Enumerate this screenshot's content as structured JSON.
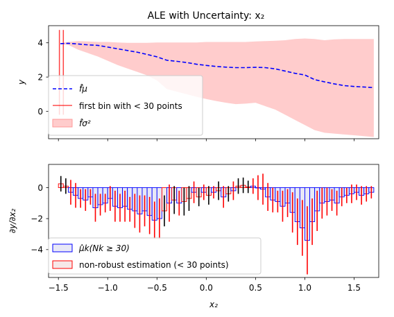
{
  "chart_data": [
    {
      "type": "area",
      "title": "ALE with Uncertainty: x₂",
      "xlabel": "",
      "ylabel": "y",
      "xlim": [
        -1.6,
        1.75
      ],
      "ylim": [
        -1.6,
        5.0
      ],
      "xticks": [
        -1.5,
        -1.0,
        -0.5,
        0.0,
        0.5,
        1.0,
        1.5
      ],
      "yticks": [
        0,
        2,
        4
      ],
      "ytick_labels": [
        "0",
        "2",
        "4"
      ],
      "colors": {
        "mean": "#0000ff",
        "band": "#ff9999",
        "vline": "#ff0000"
      },
      "series": [
        {
          "name": "f̂μ",
          "x": [
            -1.48,
            -1.4,
            -1.3,
            -1.2,
            -1.1,
            -1.0,
            -0.9,
            -0.8,
            -0.7,
            -0.6,
            -0.5,
            -0.4,
            -0.3,
            -0.2,
            -0.1,
            0.0,
            0.1,
            0.2,
            0.3,
            0.4,
            0.5,
            0.6,
            0.7,
            0.8,
            0.9,
            1.0,
            1.1,
            1.2,
            1.3,
            1.4,
            1.5,
            1.6,
            1.7
          ],
          "y": [
            3.95,
            3.97,
            3.93,
            3.88,
            3.85,
            3.75,
            3.65,
            3.55,
            3.45,
            3.32,
            3.18,
            2.98,
            2.92,
            2.85,
            2.75,
            2.68,
            2.62,
            2.58,
            2.55,
            2.55,
            2.57,
            2.55,
            2.48,
            2.35,
            2.22,
            2.12,
            1.85,
            1.72,
            1.6,
            1.5,
            1.45,
            1.42,
            1.38
          ]
        },
        {
          "name": "f̂σ²",
          "x": [
            -1.48,
            -1.4,
            -1.3,
            -1.2,
            -1.1,
            -1.0,
            -0.9,
            -0.8,
            -0.7,
            -0.6,
            -0.5,
            -0.4,
            -0.3,
            -0.2,
            -0.1,
            0.0,
            0.1,
            0.2,
            0.3,
            0.4,
            0.5,
            0.6,
            0.7,
            0.8,
            0.9,
            1.0,
            1.1,
            1.2,
            1.3,
            1.4,
            1.5,
            1.6,
            1.7
          ],
          "upper": [
            3.97,
            4.05,
            4.1,
            4.08,
            4.05,
            4.05,
            4.02,
            4.0,
            4.0,
            4.0,
            4.02,
            4.02,
            4.02,
            4.02,
            4.02,
            4.05,
            4.05,
            4.05,
            4.05,
            4.05,
            4.08,
            4.1,
            4.12,
            4.15,
            4.22,
            4.25,
            4.22,
            4.15,
            4.2,
            4.22,
            4.22,
            4.22,
            4.22
          ],
          "lower": [
            3.93,
            3.88,
            3.6,
            3.4,
            3.2,
            2.95,
            2.7,
            2.5,
            2.3,
            2.1,
            1.8,
            1.3,
            1.15,
            1.0,
            0.85,
            0.72,
            0.6,
            0.5,
            0.42,
            0.45,
            0.5,
            0.3,
            0.1,
            -0.2,
            -0.5,
            -0.8,
            -1.1,
            -1.25,
            -1.3,
            -1.35,
            -1.4,
            -1.45,
            -1.5
          ]
        }
      ],
      "vlines": {
        "name": "first bin with < 30 points",
        "x": [
          -1.49,
          -1.45
        ],
        "ymin": -0.2,
        "ymax": 4.75
      },
      "legend": {
        "placement": "lower-left",
        "entries": [
          "f̂μ",
          "first bin with < 30 points",
          "f̂σ²"
        ]
      }
    },
    {
      "type": "bar",
      "title": "",
      "xlabel": "x₂",
      "ylabel": "∂y/∂x₂",
      "xlim": [
        -1.6,
        1.75
      ],
      "ylim": [
        -5.8,
        1.5
      ],
      "xticks": [
        -1.5,
        -1.0,
        -0.5,
        0.0,
        0.5,
        1.0,
        1.5
      ],
      "xtick_labels": [
        "−1.5",
        "−1.0",
        "−0.5",
        "0.0",
        "0.5",
        "1.0",
        "1.5"
      ],
      "yticks": [
        -4,
        -2,
        0
      ],
      "ytick_labels": [
        "−4",
        "−2",
        "0"
      ],
      "bin_width": 0.05,
      "colors": {
        "robust_edge": "#0000ff",
        "robust_fill": "#e8e8f6",
        "nonrobust_edge": "#ff0000",
        "nonrobust_fill": "#f6e8e8",
        "err_robust": "#ff0000",
        "err_nonrobust": "#000000"
      },
      "bins": {
        "x": [
          -1.475,
          -1.425,
          -1.375,
          -1.325,
          -1.275,
          -1.225,
          -1.175,
          -1.125,
          -1.075,
          -1.025,
          -0.975,
          -0.925,
          -0.875,
          -0.825,
          -0.775,
          -0.725,
          -0.675,
          -0.625,
          -0.575,
          -0.525,
          -0.475,
          -0.425,
          -0.375,
          -0.325,
          -0.275,
          -0.225,
          -0.175,
          -0.125,
          -0.075,
          -0.025,
          0.025,
          0.075,
          0.125,
          0.175,
          0.225,
          0.275,
          0.325,
          0.375,
          0.425,
          0.475,
          0.525,
          0.575,
          0.625,
          0.675,
          0.725,
          0.775,
          0.825,
          0.875,
          0.925,
          0.975,
          1.025,
          1.075,
          1.125,
          1.175,
          1.225,
          1.275,
          1.325,
          1.375,
          1.425,
          1.475,
          1.525,
          1.575,
          1.625,
          1.675
        ],
        "values": [
          0.25,
          0.1,
          -0.3,
          -0.5,
          -0.7,
          -0.8,
          -0.6,
          -1.3,
          -1.1,
          -1.0,
          -0.7,
          -1.2,
          -1.3,
          -1.2,
          -1.4,
          -1.5,
          -1.7,
          -1.5,
          -1.8,
          -2.1,
          -2.0,
          -1.5,
          -1.0,
          -0.8,
          -1.0,
          -0.9,
          -0.7,
          -0.3,
          -0.6,
          -0.3,
          -0.5,
          -0.3,
          -0.2,
          -0.6,
          -0.4,
          -0.2,
          0.1,
          0.15,
          0.05,
          0.1,
          0.0,
          -0.1,
          -0.6,
          -0.8,
          -0.9,
          -1.2,
          -1.0,
          -1.6,
          -2.2,
          -2.6,
          -3.4,
          -2.2,
          -1.5,
          -1.0,
          -0.9,
          -0.8,
          -1.0,
          -0.6,
          -0.5,
          -0.4,
          -0.3,
          -0.5,
          -0.4,
          -0.3
        ],
        "errors": [
          0.5,
          0.5,
          0.8,
          0.8,
          0.6,
          0.7,
          0.5,
          0.9,
          0.7,
          0.6,
          0.8,
          1.0,
          0.9,
          1.0,
          0.8,
          1.1,
          1.2,
          1.0,
          1.2,
          1.2,
          1.3,
          1.0,
          1.2,
          0.9,
          0.8,
          0.9,
          0.8,
          0.7,
          0.6,
          0.5,
          0.6,
          0.4,
          0.6,
          0.7,
          0.5,
          0.6,
          0.5,
          0.5,
          0.4,
          0.5,
          0.8,
          1.0,
          0.9,
          0.8,
          0.7,
          1.0,
          0.9,
          1.3,
          1.5,
          1.8,
          2.2,
          1.5,
          1.3,
          1.0,
          0.9,
          0.7,
          0.8,
          0.6,
          0.5,
          0.6,
          0.5,
          0.6,
          0.5,
          0.4
        ],
        "robust": [
          false,
          false,
          true,
          true,
          true,
          true,
          true,
          true,
          true,
          true,
          true,
          true,
          true,
          true,
          true,
          true,
          true,
          true,
          true,
          true,
          true,
          false,
          true,
          false,
          true,
          false,
          false,
          true,
          false,
          true,
          false,
          true,
          false,
          true,
          false,
          true,
          false,
          false,
          false,
          true,
          true,
          true,
          true,
          true,
          true,
          true,
          true,
          true,
          true,
          true,
          true,
          true,
          true,
          true,
          true,
          true,
          true,
          true,
          true,
          true,
          true,
          true,
          true,
          true
        ]
      },
      "legend": {
        "placement": "lower-left",
        "entries": [
          "μ̂k(Nk ≥ 30)",
          "non-robust estimation (< 30 points)"
        ]
      }
    }
  ]
}
